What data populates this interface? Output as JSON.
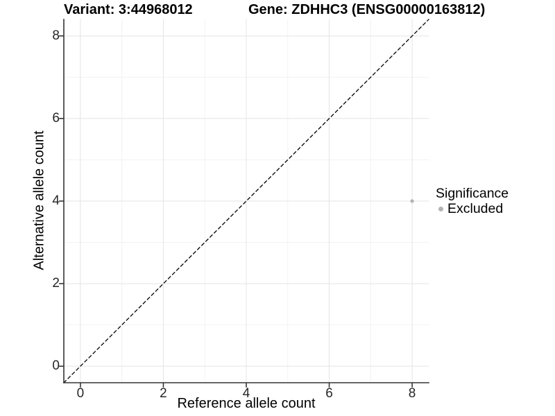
{
  "titles": {
    "variant": "Variant: 3:44968012",
    "gene": "Gene: ZDHHC3 (ENSG00000163812)"
  },
  "chart_data": {
    "type": "scatter",
    "title_left": "Variant: 3:44968012",
    "title_right": "Gene: ZDHHC3 (ENSG00000163812)",
    "xlabel": "Reference allele count",
    "ylabel": "Alternative allele count",
    "xlim": [
      -0.4,
      8.4
    ],
    "ylim": [
      -0.4,
      8.4
    ],
    "x_ticks": [
      0,
      2,
      4,
      6,
      8
    ],
    "y_ticks": [
      0,
      2,
      4,
      6,
      8
    ],
    "x_minor_gridlines": [
      1,
      3,
      5,
      7
    ],
    "y_minor_gridlines": [
      1,
      3,
      5,
      7
    ],
    "grid": "on",
    "series": [
      {
        "name": "Excluded",
        "color": "#b3b3b3",
        "points": [
          {
            "x": 8,
            "y": 4
          }
        ]
      }
    ],
    "identity_line": {
      "equation": "y = x",
      "style": "dashed",
      "color": "#000000",
      "x_start": -0.4,
      "x_end": 8.4
    },
    "legend": {
      "title": "Significance",
      "position": "right",
      "items": [
        {
          "label": "Excluded",
          "color": "#b3b3b3"
        }
      ]
    }
  },
  "colors": {
    "point_excluded": "#b3b3b3",
    "identity_line": "#000000",
    "axis_line": "#333333",
    "grid_major": "#e4e4e4",
    "grid_minor": "#f2f2f2",
    "tick_text": "#262626",
    "background": "#ffffff"
  }
}
